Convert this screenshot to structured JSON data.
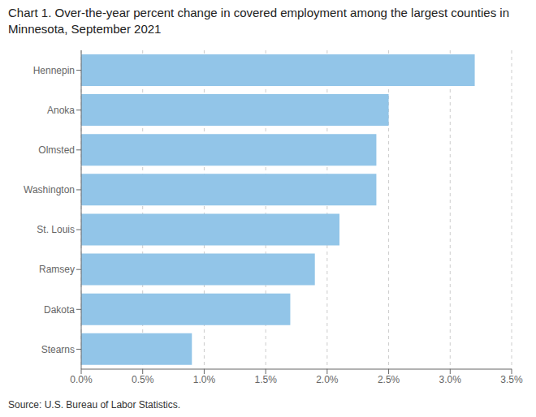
{
  "chart_data": {
    "type": "bar",
    "orientation": "horizontal",
    "title": "Chart 1. Over-the-year percent change in covered employment among the largest counties in Minnesota, September 2021",
    "annotations": [
      "Source: U.S. Bureau of Labor Statistics."
    ],
    "categories": [
      "Hennepin",
      "Anoka",
      "Olmsted",
      "Washington",
      "St. Louis",
      "Ramsey",
      "Dakota",
      "Stearns"
    ],
    "values": [
      0.032,
      0.025,
      0.024,
      0.024,
      0.021,
      0.019,
      0.017,
      0.009
    ],
    "color": "#92C5E8",
    "xlim": [
      0.0,
      0.035
    ],
    "xticks": [
      {
        "value": 0.0,
        "label": "0.0%"
      },
      {
        "value": 0.005,
        "label": "0.5%"
      },
      {
        "value": 0.01,
        "label": "1.0%"
      },
      {
        "value": 0.015,
        "label": "1.5%"
      },
      {
        "value": 0.02,
        "label": "2.0%"
      },
      {
        "value": 0.025,
        "label": "2.5%"
      },
      {
        "value": 0.03,
        "label": "3.0%"
      },
      {
        "value": 0.035,
        "label": "3.5%"
      }
    ],
    "grid": true
  }
}
